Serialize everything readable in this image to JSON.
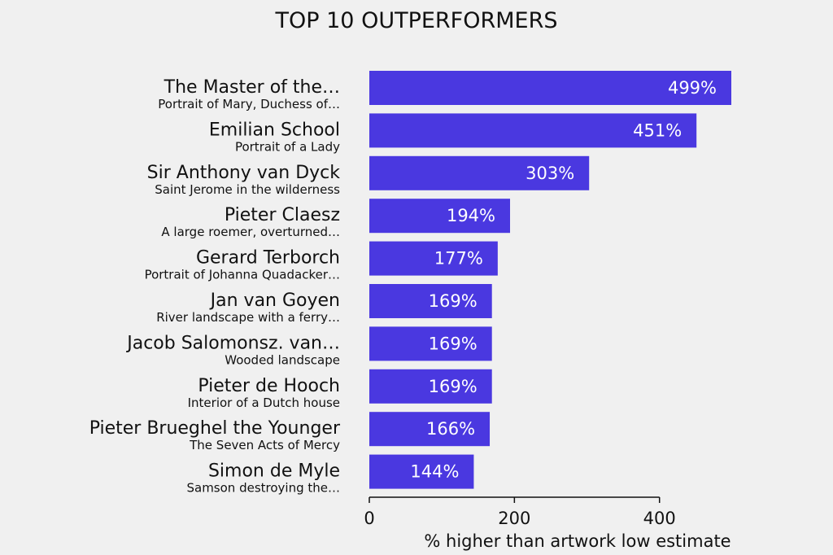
{
  "chart_data": {
    "type": "bar",
    "orientation": "horizontal",
    "title": "TOP 10 OUTPERFORMERS",
    "xlabel": "% higher than artwork low estimate",
    "ylabel": "",
    "xlim": [
      0,
      499
    ],
    "xticks": [
      0,
      200,
      400
    ],
    "value_suffix": "%",
    "bar_color": "#4a38e0",
    "grid": false,
    "categories": [
      {
        "artist": "The Master of the…",
        "artwork": "Portrait of Mary, Duchess of…"
      },
      {
        "artist": "Emilian School",
        "artwork": "Portrait of a Lady"
      },
      {
        "artist": "Sir Anthony van Dyck",
        "artwork": "Saint Jerome in the wilderness"
      },
      {
        "artist": "Pieter Claesz",
        "artwork": "A large roemer, overturned…"
      },
      {
        "artist": "Gerard Terborch",
        "artwork": "Portrait of Johanna Quadacker…"
      },
      {
        "artist": "Jan van Goyen",
        "artwork": "River landscape with a ferry…"
      },
      {
        "artist": "Jacob Salomonsz. van…",
        "artwork": "Wooded landscape"
      },
      {
        "artist": "Pieter de Hooch",
        "artwork": "Interior of a Dutch house"
      },
      {
        "artist": "Pieter Brueghel the Younger",
        "artwork": "The Seven Acts of Mercy"
      },
      {
        "artist": "Simon de Myle",
        "artwork": "Samson destroying the…"
      }
    ],
    "values": [
      499,
      451,
      303,
      194,
      177,
      169,
      169,
      169,
      166,
      144
    ]
  }
}
